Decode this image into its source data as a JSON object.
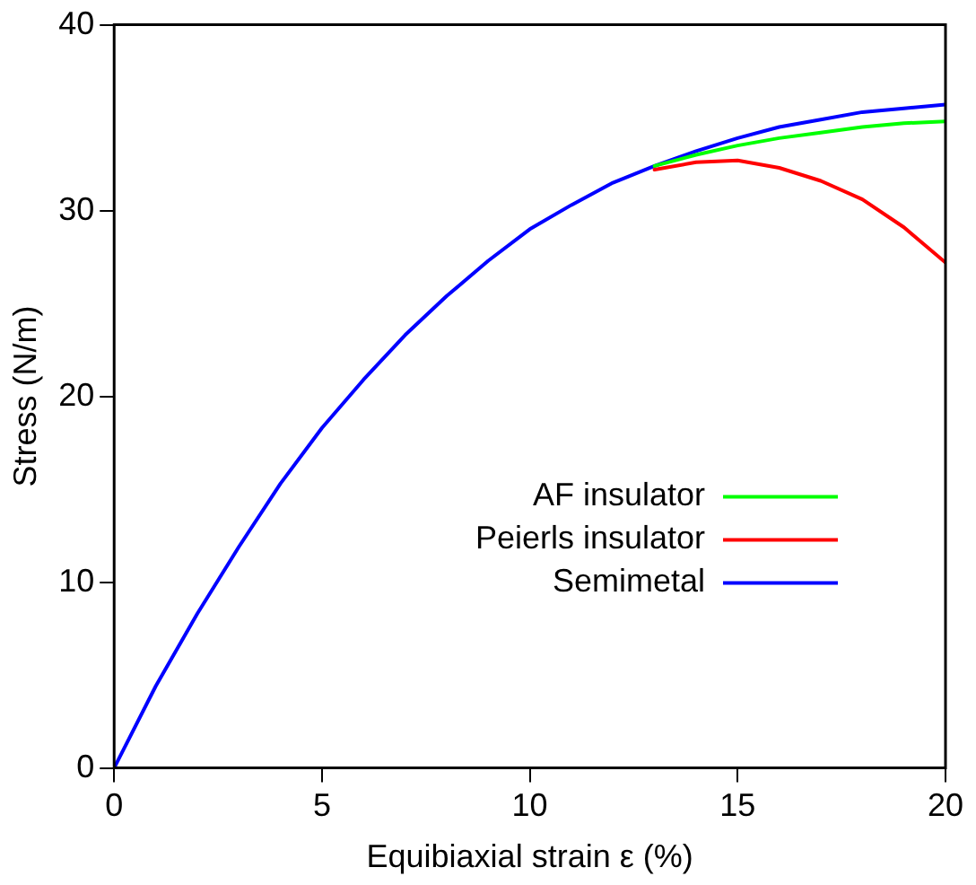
{
  "chart_data": {
    "type": "line",
    "xlabel": "Equibiaxial strain ε (%)",
    "ylabel": "Stress (N/m)",
    "xlim": [
      0,
      20
    ],
    "xticks": [
      0,
      5,
      10,
      15,
      20
    ],
    "ylim": [
      0,
      40
    ],
    "yticks": [
      0,
      10,
      20,
      30,
      40
    ],
    "grid": false,
    "legend": "center right",
    "marker": "none",
    "line_style": "solid",
    "series": [
      {
        "name": "AF insulator",
        "color": "#00ff00",
        "x": [
          13,
          14,
          15,
          16,
          17,
          18,
          19,
          20
        ],
        "values": [
          32.4,
          33.0,
          33.5,
          33.9,
          34.2,
          34.5,
          34.7,
          34.8
        ]
      },
      {
        "name": "Peierls insulator",
        "color": "#ff0000",
        "x": [
          13,
          14,
          15,
          16,
          17,
          18,
          19,
          20
        ],
        "values": [
          32.2,
          32.6,
          32.7,
          32.3,
          31.6,
          30.6,
          29.1,
          27.2
        ]
      },
      {
        "name": "Semimetal",
        "color": "#0000ff",
        "x": [
          0,
          1,
          2,
          3,
          4,
          5,
          6,
          7,
          8,
          9,
          10,
          11,
          12,
          13,
          14,
          15,
          16,
          17,
          18,
          19,
          20
        ],
        "values": [
          0,
          4.4,
          8.3,
          11.9,
          15.3,
          18.3,
          20.9,
          23.3,
          25.4,
          27.3,
          29,
          30.3,
          31.5,
          32.4,
          33.2,
          33.9,
          34.5,
          34.9,
          35.3,
          35.5,
          35.7
        ]
      }
    ]
  }
}
